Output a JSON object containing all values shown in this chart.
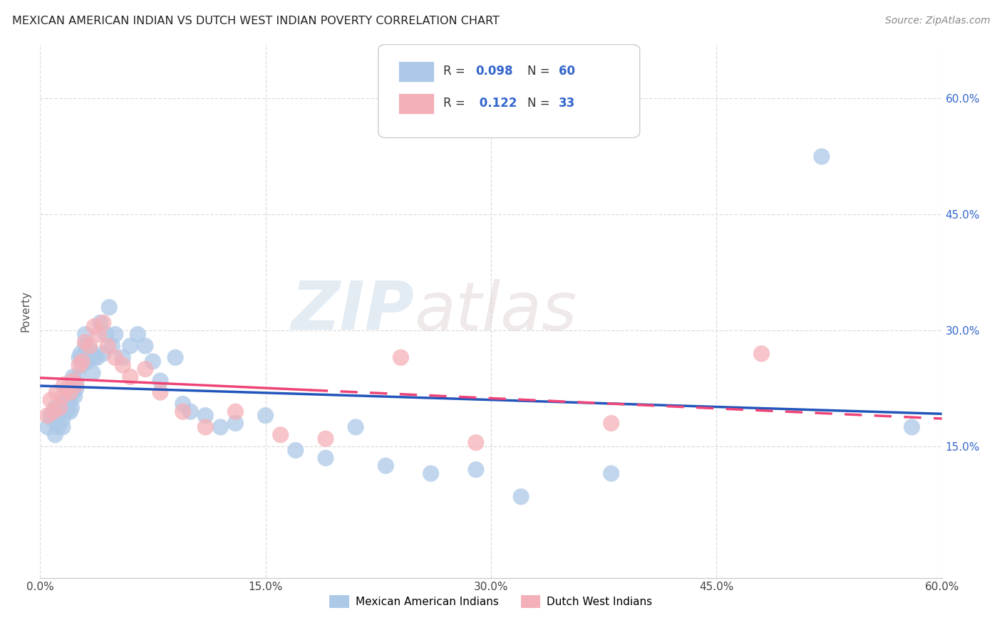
{
  "title": "MEXICAN AMERICAN INDIAN VS DUTCH WEST INDIAN POVERTY CORRELATION CHART",
  "source": "Source: ZipAtlas.com",
  "ylabel": "Poverty",
  "xlim": [
    0.0,
    0.6
  ],
  "ylim": [
    -0.02,
    0.67
  ],
  "plot_ylim": [
    0.0,
    0.65
  ],
  "xtick_vals": [
    0.0,
    0.15,
    0.3,
    0.45,
    0.6
  ],
  "ytick_vals": [
    0.15,
    0.3,
    0.45,
    0.6
  ],
  "watermark_zip": "ZIP",
  "watermark_atlas": "atlas",
  "blue_scatter_color": "#adc9e8",
  "pink_scatter_color": "#f4b0b8",
  "blue_line_color": "#2255bb",
  "pink_line_color": "#ee4477",
  "legend1_label": "Mexican American Indians",
  "legend2_label": "Dutch West Indians",
  "background_color": "#ffffff",
  "grid_color": "#cccccc",
  "blue_points_x": [
    0.005,
    0.007,
    0.008,
    0.01,
    0.01,
    0.012,
    0.012,
    0.014,
    0.015,
    0.015,
    0.016,
    0.018,
    0.018,
    0.02,
    0.02,
    0.021,
    0.022,
    0.022,
    0.023,
    0.024,
    0.025,
    0.026,
    0.027,
    0.028,
    0.03,
    0.03,
    0.032,
    0.033,
    0.035,
    0.036,
    0.038,
    0.04,
    0.042,
    0.044,
    0.046,
    0.048,
    0.05,
    0.055,
    0.06,
    0.065,
    0.07,
    0.075,
    0.08,
    0.09,
    0.095,
    0.1,
    0.11,
    0.12,
    0.13,
    0.15,
    0.17,
    0.19,
    0.21,
    0.23,
    0.26,
    0.29,
    0.32,
    0.38,
    0.52,
    0.58
  ],
  "blue_points_y": [
    0.175,
    0.19,
    0.185,
    0.2,
    0.165,
    0.195,
    0.175,
    0.195,
    0.185,
    0.175,
    0.205,
    0.215,
    0.195,
    0.21,
    0.195,
    0.2,
    0.24,
    0.22,
    0.215,
    0.225,
    0.24,
    0.265,
    0.27,
    0.255,
    0.28,
    0.295,
    0.26,
    0.275,
    0.245,
    0.265,
    0.265,
    0.31,
    0.27,
    0.295,
    0.33,
    0.28,
    0.295,
    0.265,
    0.28,
    0.295,
    0.28,
    0.26,
    0.235,
    0.265,
    0.205,
    0.195,
    0.19,
    0.175,
    0.18,
    0.19,
    0.145,
    0.135,
    0.175,
    0.125,
    0.115,
    0.12,
    0.085,
    0.115,
    0.525,
    0.175
  ],
  "pink_points_x": [
    0.005,
    0.007,
    0.009,
    0.011,
    0.013,
    0.015,
    0.016,
    0.018,
    0.02,
    0.022,
    0.024,
    0.026,
    0.028,
    0.03,
    0.033,
    0.036,
    0.039,
    0.042,
    0.045,
    0.05,
    0.055,
    0.06,
    0.07,
    0.08,
    0.095,
    0.11,
    0.13,
    0.16,
    0.19,
    0.24,
    0.29,
    0.38,
    0.48
  ],
  "pink_points_y": [
    0.19,
    0.21,
    0.195,
    0.22,
    0.2,
    0.215,
    0.23,
    0.225,
    0.22,
    0.235,
    0.23,
    0.255,
    0.26,
    0.285,
    0.28,
    0.305,
    0.295,
    0.31,
    0.28,
    0.265,
    0.255,
    0.24,
    0.25,
    0.22,
    0.195,
    0.175,
    0.195,
    0.165,
    0.16,
    0.265,
    0.155,
    0.18,
    0.27
  ],
  "blue_line_x0": 0.0,
  "blue_line_y0": 0.193,
  "blue_line_x1": 0.6,
  "blue_line_y1": 0.235,
  "pink_line_x0": 0.0,
  "pink_line_y0": 0.21,
  "pink_line_x1": 0.42,
  "pink_line_y1": 0.25
}
